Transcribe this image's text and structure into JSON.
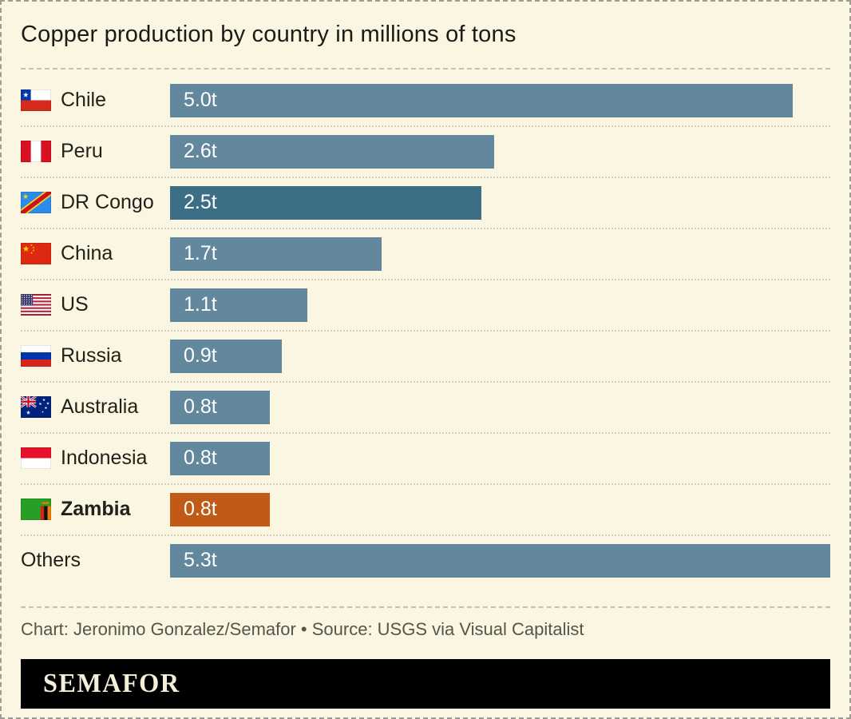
{
  "page": {
    "title": "Copper production by country in millions of tons",
    "credit": "Chart: Jeronimo Gonzalez/Semafor • Source: USGS via Visual Capitalist",
    "logo_text": "SEMAFOR"
  },
  "colors": {
    "background": "#FAF6E1",
    "bar_default": "#63889D",
    "bar_highlight_dark": "#3C6F86",
    "bar_highlight_orange": "#C15A17",
    "bar_value_text": "#FFFFFF",
    "logo_background": "#000000",
    "logo_text": "#F4EFD9"
  },
  "chart_data": {
    "type": "bar",
    "orientation": "horizontal",
    "title": "Copper production by country in millions of tons",
    "unit": "millions of tons",
    "value_suffix": "t",
    "axis_max": 5.3,
    "grid": false,
    "legend": "none",
    "categories": [
      "Chile",
      "Peru",
      "DR Congo",
      "China",
      "US",
      "Russia",
      "Australia",
      "Indonesia",
      "Zambia",
      "Others"
    ],
    "values": [
      5.0,
      2.6,
      2.5,
      1.7,
      1.1,
      0.9,
      0.8,
      0.8,
      0.8,
      5.3
    ],
    "rows": [
      {
        "country": "Chile",
        "value": 5.0,
        "label": "5.0t",
        "flag": "flag-chile-icon",
        "style": "default",
        "bold": false
      },
      {
        "country": "Peru",
        "value": 2.6,
        "label": "2.6t",
        "flag": "flag-peru-icon",
        "style": "default",
        "bold": false
      },
      {
        "country": "DR Congo",
        "value": 2.5,
        "label": "2.5t",
        "flag": "flag-drcongo-icon",
        "style": "dark",
        "bold": false
      },
      {
        "country": "China",
        "value": 1.7,
        "label": "1.7t",
        "flag": "flag-china-icon",
        "style": "default",
        "bold": false
      },
      {
        "country": "US",
        "value": 1.1,
        "label": "1.1t",
        "flag": "flag-us-icon",
        "style": "default",
        "bold": false
      },
      {
        "country": "Russia",
        "value": 0.9,
        "label": "0.9t",
        "flag": "flag-russia-icon",
        "style": "default",
        "bold": false
      },
      {
        "country": "Australia",
        "value": 0.8,
        "label": "0.8t",
        "flag": "flag-australia-icon",
        "style": "default",
        "bold": false
      },
      {
        "country": "Indonesia",
        "value": 0.8,
        "label": "0.8t",
        "flag": "flag-indonesia-icon",
        "style": "default",
        "bold": false
      },
      {
        "country": "Zambia",
        "value": 0.8,
        "label": "0.8t",
        "flag": "flag-zambia-icon",
        "style": "orange",
        "bold": true
      },
      {
        "country": "Others",
        "value": 5.3,
        "label": "5.3t",
        "flag": null,
        "style": "default",
        "bold": false
      }
    ]
  }
}
